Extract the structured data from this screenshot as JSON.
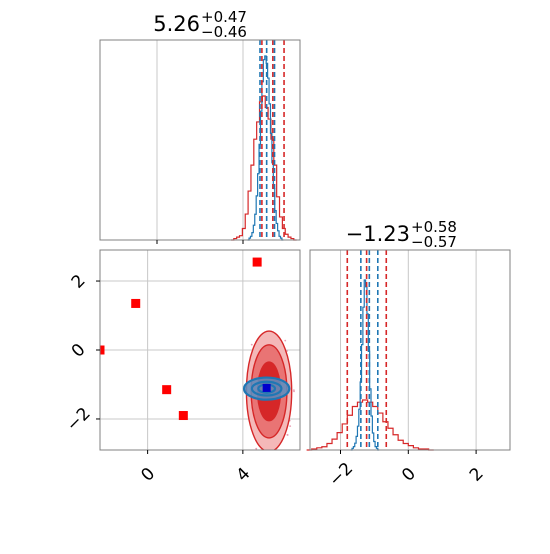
{
  "chart_data": [
    {
      "type": "histogram",
      "panel": "marginal-x",
      "title": {
        "value": "5.26",
        "sup": "+0.47",
        "sub": "−0.46"
      },
      "xlim": [
        -2.0,
        6.4
      ],
      "grid": true,
      "series": [
        {
          "color": "#d62728",
          "bin_start": 3.5,
          "bin_width": 0.12,
          "counts": [
            0,
            1,
            2,
            3,
            8,
            18,
            34,
            52,
            70,
            82,
            96,
            100,
            92,
            84,
            70,
            52,
            30,
            16,
            8,
            4,
            2,
            1,
            0
          ],
          "quantiles": [
            4.8,
            5.26,
            5.73
          ]
        },
        {
          "color": "#1f77b4",
          "bin_start": 4.2,
          "bin_width": 0.06,
          "counts": [
            0,
            1,
            2,
            4,
            8,
            14,
            24,
            36,
            52,
            70,
            86,
            98,
            100,
            96,
            88,
            74,
            58,
            42,
            28,
            16,
            9,
            5,
            2,
            1,
            0
          ],
          "quantiles": [
            4.72,
            5.0,
            5.33
          ]
        }
      ],
      "hist_tops": {
        "red_max": 0.72,
        "blue_max": 0.92
      }
    },
    {
      "type": "histogram",
      "panel": "marginal-y",
      "title": {
        "value": "−1.23",
        "sup": "+0.58",
        "sub": "−0.57"
      },
      "xlim": [
        -2.9,
        3.0
      ],
      "xticks": [
        -2,
        0,
        2
      ],
      "xtick_labels": [
        "−2",
        "0",
        "2"
      ],
      "grid": true,
      "series": [
        {
          "color": "#d62728",
          "bin_start": -3.0,
          "bin_width": 0.15,
          "counts": [
            0,
            1,
            2,
            3,
            6,
            10,
            16,
            24,
            32,
            40,
            44,
            46,
            44,
            40,
            34,
            26,
            20,
            14,
            9,
            6,
            4,
            2,
            1,
            1,
            0
          ],
          "quantiles": [
            -1.8,
            -1.23,
            -0.65
          ]
        },
        {
          "color": "#1f77b4",
          "bin_start": -1.7,
          "bin_width": 0.04,
          "counts": [
            0,
            1,
            2,
            4,
            8,
            14,
            24,
            40,
            62,
            84,
            100,
            96,
            80,
            58,
            36,
            20,
            10,
            5,
            2,
            1,
            0
          ],
          "quantiles": [
            -1.4,
            -1.15,
            -0.9
          ]
        }
      ],
      "hist_tops": {
        "red_max": 0.25,
        "blue_max": 0.85
      }
    },
    {
      "type": "scatter",
      "panel": "joint",
      "xlim": [
        -2.0,
        6.4
      ],
      "ylim": [
        -2.9,
        2.9
      ],
      "xticks": [
        0,
        4
      ],
      "xtick_labels": [
        "0",
        "4"
      ],
      "yticks": [
        -2,
        0,
        2
      ],
      "ytick_labels": [
        "−2",
        "0",
        "2"
      ],
      "grid": true,
      "red_markers": [
        {
          "x": -2.0,
          "y": 0.0
        },
        {
          "x": -0.5,
          "y": 1.35
        },
        {
          "x": 0.8,
          "y": -1.15
        },
        {
          "x": 1.5,
          "y": -1.9
        },
        {
          "x": 4.6,
          "y": 2.55
        }
      ],
      "blue_marker": {
        "x": 5.0,
        "y": -1.1
      },
      "red_contours": {
        "center": {
          "x": 5.1,
          "y": -1.2
        },
        "radii_x": [
          0.95,
          0.75,
          0.48
        ],
        "radii_y": [
          1.75,
          1.35,
          0.85
        ],
        "fill_colors": [
          "#f4b8b8",
          "#e97474",
          "#d62728"
        ],
        "stroke_color": "#d62728"
      },
      "blue_contours": {
        "center": {
          "x": 5.0,
          "y": -1.12
        },
        "radii_x": [
          0.95,
          0.62,
          0.35
        ],
        "radii_y": [
          0.32,
          0.2,
          0.12
        ],
        "stroke_color": "#1f77b4",
        "fill_color": "#5a8fc2"
      }
    }
  ]
}
